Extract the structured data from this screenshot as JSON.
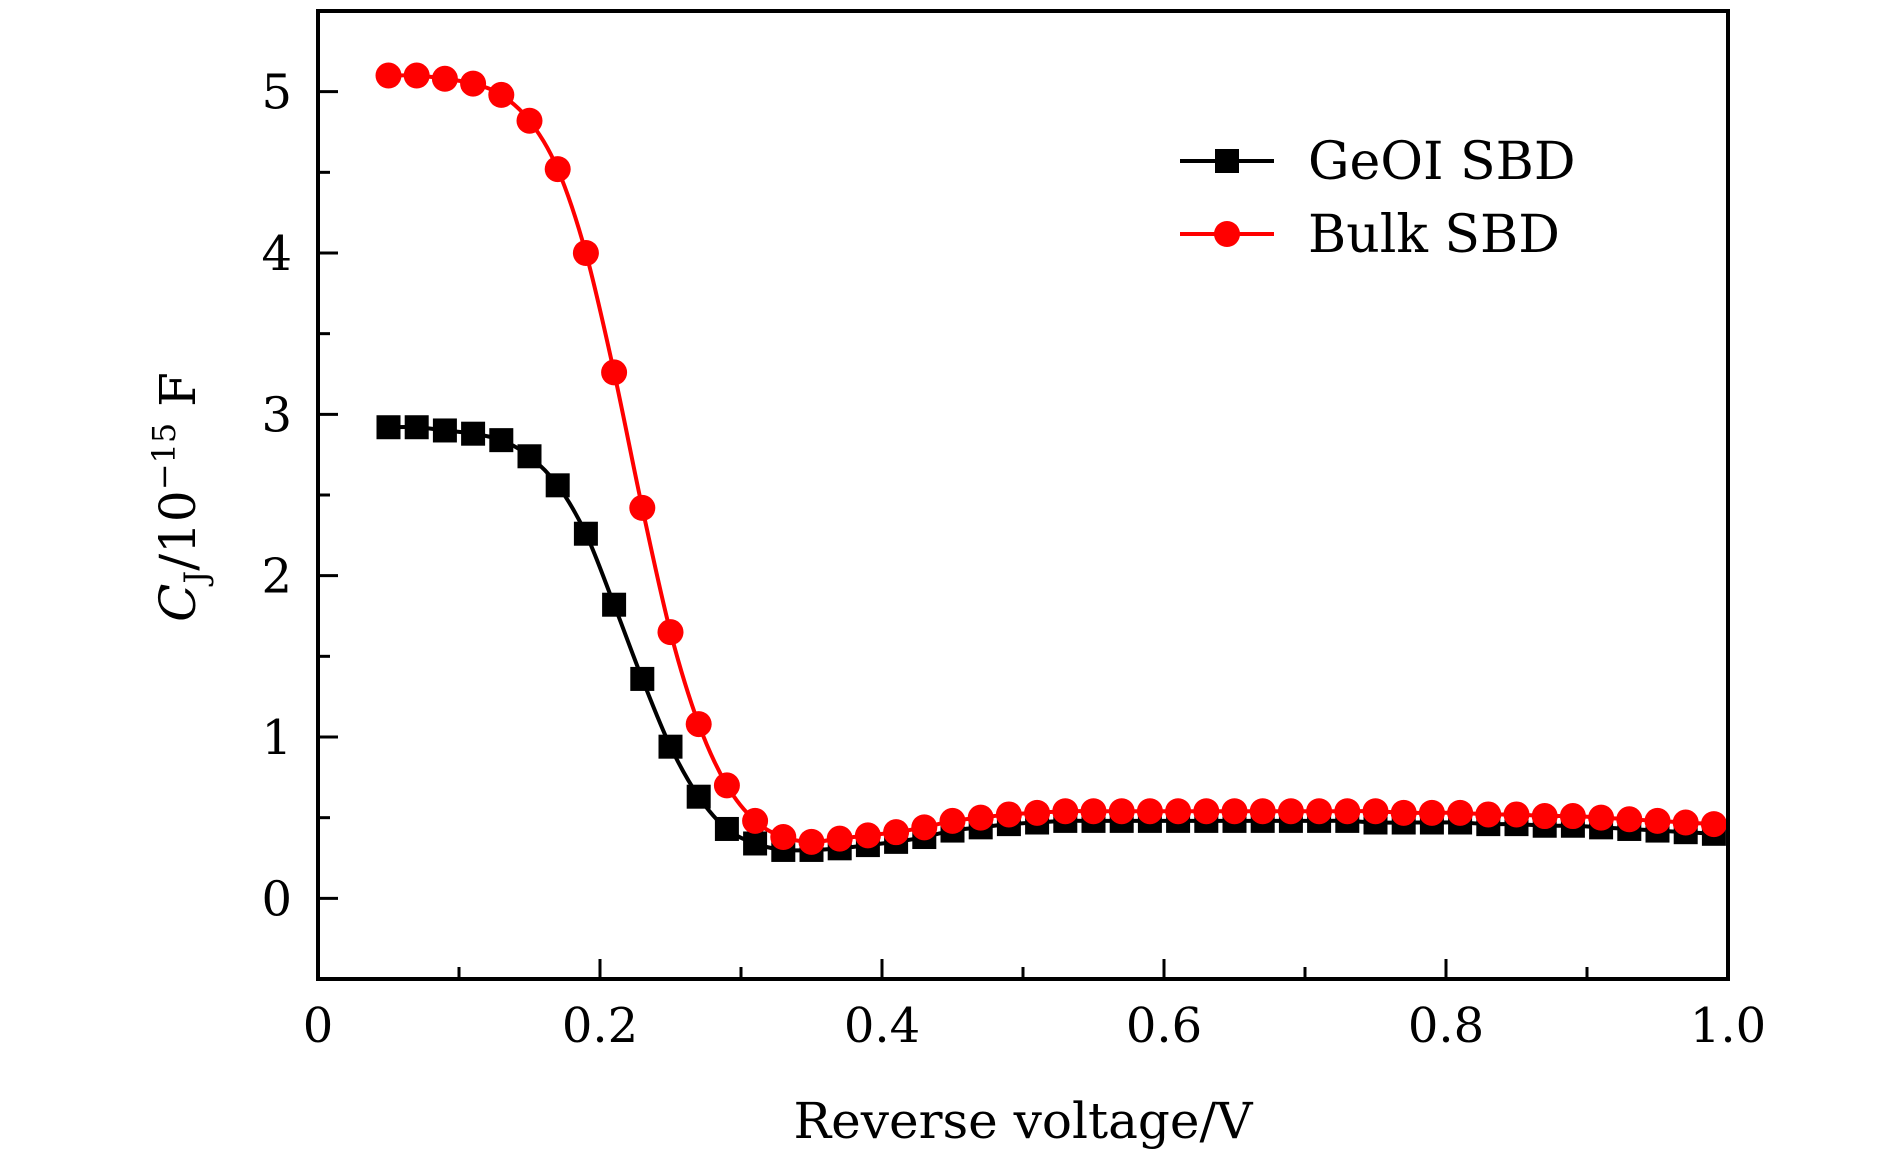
{
  "chart_data": {
    "type": "line",
    "title": "",
    "xlabel": "Reverse voltage/V",
    "ylabel": {
      "main": "C",
      "sub": "J",
      "mid": "/10",
      "sup": "−15",
      "unit": " F"
    },
    "xlim": [
      0,
      1.0
    ],
    "ylim": [
      -0.5,
      5.5
    ],
    "xticks": [
      0,
      0.2,
      0.4,
      0.6,
      0.8,
      1.0
    ],
    "xtick_labels": [
      "0",
      "0.2",
      "0.4",
      "0.6",
      "0.8",
      "1.0"
    ],
    "yticks": [
      0,
      1,
      2,
      3,
      4,
      5
    ],
    "ytick_labels": [
      "0",
      "1",
      "2",
      "3",
      "4",
      "5"
    ],
    "grid": false,
    "legend_position": "top-right",
    "x": [
      0.05,
      0.07,
      0.09,
      0.11,
      0.13,
      0.15,
      0.17,
      0.19,
      0.21,
      0.23,
      0.25,
      0.27,
      0.29,
      0.31,
      0.33,
      0.35,
      0.37,
      0.39,
      0.41,
      0.43,
      0.45,
      0.47,
      0.49,
      0.51,
      0.53,
      0.55,
      0.57,
      0.59,
      0.61,
      0.63,
      0.65,
      0.67,
      0.69,
      0.71,
      0.73,
      0.75,
      0.77,
      0.79,
      0.81,
      0.83,
      0.85,
      0.87,
      0.89,
      0.91,
      0.93,
      0.95,
      0.97,
      0.99
    ],
    "series": [
      {
        "name": "GeOI SBD",
        "color": "#000000",
        "marker": "square",
        "values": [
          2.92,
          2.92,
          2.9,
          2.88,
          2.84,
          2.74,
          2.56,
          2.26,
          1.82,
          1.36,
          0.94,
          0.63,
          0.43,
          0.34,
          0.3,
          0.3,
          0.31,
          0.33,
          0.35,
          0.38,
          0.42,
          0.44,
          0.46,
          0.47,
          0.48,
          0.48,
          0.48,
          0.48,
          0.48,
          0.48,
          0.48,
          0.48,
          0.48,
          0.48,
          0.48,
          0.47,
          0.47,
          0.47,
          0.47,
          0.46,
          0.46,
          0.45,
          0.45,
          0.44,
          0.43,
          0.42,
          0.41,
          0.4
        ]
      },
      {
        "name": "Bulk SBD",
        "color": "#ff0000",
        "marker": "circle",
        "values": [
          5.1,
          5.1,
          5.08,
          5.05,
          4.98,
          4.82,
          4.52,
          4.0,
          3.26,
          2.42,
          1.65,
          1.08,
          0.7,
          0.48,
          0.38,
          0.35,
          0.37,
          0.39,
          0.41,
          0.44,
          0.48,
          0.5,
          0.52,
          0.53,
          0.54,
          0.54,
          0.54,
          0.54,
          0.54,
          0.54,
          0.54,
          0.54,
          0.54,
          0.54,
          0.54,
          0.54,
          0.53,
          0.53,
          0.53,
          0.52,
          0.52,
          0.51,
          0.51,
          0.5,
          0.49,
          0.48,
          0.47,
          0.46
        ]
      }
    ]
  }
}
